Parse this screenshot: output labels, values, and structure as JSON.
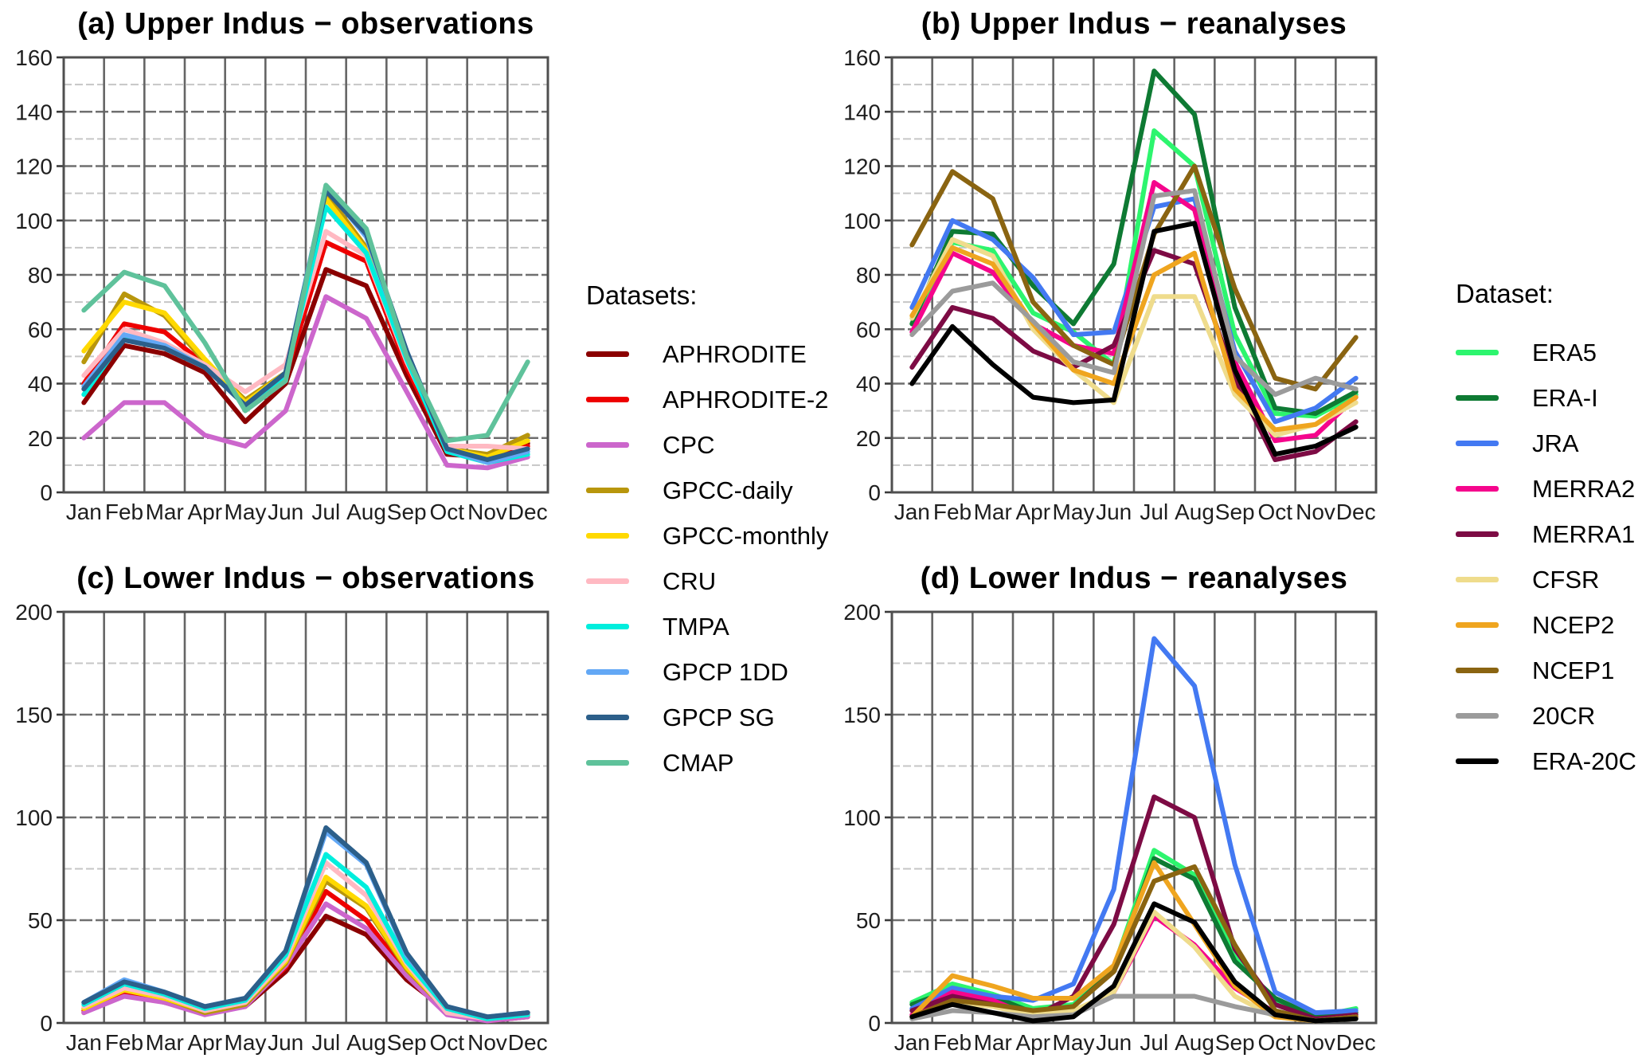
{
  "figure": {
    "background": "#ffffff"
  },
  "legends": [
    {
      "title": "Datasets:",
      "entries": [
        {
          "label": "APHRODITE",
          "color": "#8B0000"
        },
        {
          "label": "APHRODITE-2",
          "color": "#EE0000"
        },
        {
          "label": "CPC",
          "color": "#CC66CC"
        },
        {
          "label": "GPCC-daily",
          "color": "#B8960C"
        },
        {
          "label": "GPCC-monthly",
          "color": "#FFD900"
        },
        {
          "label": "CRU",
          "color": "#FFB9C2"
        },
        {
          "label": "TMPA",
          "color": "#00EEDD"
        },
        {
          "label": "GPCP 1DD",
          "color": "#63A8F5"
        },
        {
          "label": "GPCP SG",
          "color": "#2C5F8A"
        },
        {
          "label": "CMAP",
          "color": "#5FC29B"
        }
      ]
    },
    {
      "title": "Dataset:",
      "entries": [
        {
          "label": "ERA5",
          "color": "#2DF56E"
        },
        {
          "label": "ERA-I",
          "color": "#0E7A33"
        },
        {
          "label": "JRA",
          "color": "#4379F2"
        },
        {
          "label": "MERRA2",
          "color": "#F5058C"
        },
        {
          "label": "MERRA1",
          "color": "#7D0B44"
        },
        {
          "label": "CFSR",
          "color": "#EFDC8C"
        },
        {
          "label": "NCEP2",
          "color": "#EFA51F"
        },
        {
          "label": "NCEP1",
          "color": "#8A6411"
        },
        {
          "label": "20CR",
          "color": "#9B9B9B"
        },
        {
          "label": "ERA-20C",
          "color": "#000000"
        }
      ]
    }
  ],
  "chart_data": [
    {
      "type": "line",
      "panel": "a",
      "title": "(a) Upper Indus − observations",
      "xlabel": "",
      "ylabel": "",
      "categories": [
        "Jan",
        "Feb",
        "Mar",
        "Apr",
        "May",
        "Jun",
        "Jul",
        "Aug",
        "Sep",
        "Oct",
        "Nov",
        "Dec"
      ],
      "ylim": [
        0,
        160
      ],
      "ytick_major": 20,
      "ytick_minor": 10,
      "grid": "horizontal major+minor dashed, vertical month boundaries",
      "legend": 0,
      "series": [
        {
          "name": "APHRODITE",
          "values": [
            33,
            54,
            51,
            44,
            26,
            40,
            82,
            76,
            43,
            14,
            13,
            18
          ]
        },
        {
          "name": "APHRODITE-2",
          "values": [
            40,
            62,
            59,
            47,
            32,
            43,
            92,
            85,
            46,
            16,
            13,
            17
          ]
        },
        {
          "name": "CPC",
          "values": [
            20,
            33,
            33,
            21,
            17,
            30,
            72,
            64,
            37,
            10,
            9,
            13
          ]
        },
        {
          "name": "GPCC-daily",
          "values": [
            48,
            73,
            65,
            48,
            34,
            44,
            110,
            90,
            51,
            16,
            14,
            21
          ]
        },
        {
          "name": "GPCC-monthly",
          "values": [
            52,
            70,
            66,
            49,
            33,
            44,
            108,
            89,
            50,
            16,
            13,
            19
          ]
        },
        {
          "name": "CRU",
          "values": [
            43,
            60,
            55,
            47,
            37,
            47,
            96,
            87,
            48,
            17,
            17,
            16
          ]
        },
        {
          "name": "TMPA",
          "values": [
            36,
            57,
            54,
            46,
            32,
            43,
            105,
            88,
            49,
            15,
            11,
            14
          ]
        },
        {
          "name": "GPCP 1DD",
          "values": [
            39,
            58,
            54,
            46,
            32,
            44,
            112,
            94,
            52,
            16,
            11,
            15
          ]
        },
        {
          "name": "GPCP SG",
          "values": [
            38,
            56,
            53,
            46,
            32,
            44,
            111,
            95,
            52,
            16,
            12,
            16
          ]
        },
        {
          "name": "CMAP",
          "values": [
            67,
            81,
            76,
            55,
            30,
            41,
            113,
            97,
            50,
            19,
            21,
            48
          ]
        }
      ]
    },
    {
      "type": "line",
      "panel": "b",
      "title": "(b) Upper Indus − reanalyses",
      "xlabel": "",
      "ylabel": "",
      "categories": [
        "Jan",
        "Feb",
        "Mar",
        "Apr",
        "May",
        "Jun",
        "Jul",
        "Aug",
        "Sep",
        "Oct",
        "Nov",
        "Dec"
      ],
      "ylim": [
        0,
        160
      ],
      "ytick_major": 20,
      "ytick_minor": 10,
      "grid": "horizontal major+minor dashed, vertical month boundaries",
      "legend": 1,
      "series": [
        {
          "name": "ERA5",
          "values": [
            62,
            92,
            89,
            66,
            59,
            47,
            133,
            120,
            58,
            29,
            28,
            36
          ]
        },
        {
          "name": "ERA-I",
          "values": [
            62,
            96,
            95,
            76,
            62,
            84,
            155,
            139,
            68,
            31,
            29,
            37
          ]
        },
        {
          "name": "JRA",
          "values": [
            68,
            100,
            93,
            79,
            58,
            59,
            105,
            108,
            52,
            26,
            31,
            42
          ]
        },
        {
          "name": "MERRA2",
          "values": [
            59,
            88,
            81,
            62,
            54,
            51,
            114,
            104,
            48,
            19,
            21,
            35
          ]
        },
        {
          "name": "MERRA1",
          "values": [
            46,
            68,
            64,
            52,
            46,
            54,
            89,
            84,
            42,
            12,
            15,
            26
          ]
        },
        {
          "name": "CFSR",
          "values": [
            64,
            93,
            87,
            60,
            45,
            33,
            72,
            72,
            36,
            21,
            25,
            33
          ]
        },
        {
          "name": "NCEP2",
          "values": [
            65,
            90,
            84,
            62,
            45,
            40,
            80,
            88,
            38,
            23,
            25,
            35
          ]
        },
        {
          "name": "NCEP1",
          "values": [
            91,
            118,
            108,
            70,
            54,
            47,
            95,
            120,
            75,
            42,
            38,
            57
          ]
        },
        {
          "name": "20CR",
          "values": [
            58,
            74,
            77,
            63,
            48,
            44,
            109,
            111,
            50,
            36,
            42,
            38
          ]
        },
        {
          "name": "ERA-20C",
          "values": [
            40,
            61,
            47,
            35,
            33,
            34,
            96,
            99,
            45,
            14,
            17,
            24
          ]
        }
      ]
    },
    {
      "type": "line",
      "panel": "c",
      "title": "(c) Lower Indus − observations",
      "xlabel": "",
      "ylabel": "",
      "categories": [
        "Jan",
        "Feb",
        "Mar",
        "Apr",
        "May",
        "Jun",
        "Jul",
        "Aug",
        "Sep",
        "Oct",
        "Nov",
        "Dec"
      ],
      "ylim": [
        0,
        200
      ],
      "ytick_major": 50,
      "ytick_minor": 25,
      "grid": "horizontal major+minor dashed, vertical month boundaries",
      "legend": 0,
      "series": [
        {
          "name": "APHRODITE",
          "values": [
            5,
            15,
            10,
            5,
            8,
            25,
            52,
            43,
            21,
            6,
            2,
            5
          ]
        },
        {
          "name": "APHRODITE-2",
          "values": [
            6,
            15,
            11,
            5,
            9,
            27,
            64,
            50,
            24,
            6,
            1,
            3
          ]
        },
        {
          "name": "CPC",
          "values": [
            5,
            13,
            10,
            4,
            8,
            28,
            58,
            46,
            23,
            4,
            1,
            3
          ]
        },
        {
          "name": "GPCC-daily",
          "values": [
            7,
            16,
            12,
            5,
            9,
            29,
            69,
            56,
            26,
            6,
            2,
            4
          ]
        },
        {
          "name": "GPCC-monthly",
          "values": [
            7,
            16,
            12,
            6,
            10,
            30,
            71,
            57,
            27,
            6,
            2,
            4
          ]
        },
        {
          "name": "CRU",
          "values": [
            8,
            17,
            13,
            6,
            10,
            31,
            78,
            62,
            29,
            5,
            2,
            4
          ]
        },
        {
          "name": "TMPA",
          "values": [
            9,
            19,
            14,
            7,
            11,
            33,
            82,
            66,
            30,
            7,
            2,
            4
          ]
        },
        {
          "name": "GPCP 1DD",
          "values": [
            10,
            21,
            15,
            8,
            12,
            35,
            93,
            77,
            33,
            8,
            3,
            5
          ]
        },
        {
          "name": "GPCP SG",
          "values": [
            10,
            20,
            15,
            8,
            12,
            35,
            95,
            78,
            34,
            8,
            3,
            5
          ]
        }
      ]
    },
    {
      "type": "line",
      "panel": "d",
      "title": "(d) Lower Indus − reanalyses",
      "xlabel": "",
      "ylabel": "",
      "categories": [
        "Jan",
        "Feb",
        "Mar",
        "Apr",
        "May",
        "Jun",
        "Jul",
        "Aug",
        "Sep",
        "Oct",
        "Nov",
        "Dec"
      ],
      "ylim": [
        0,
        200
      ],
      "ytick_major": 50,
      "ytick_minor": 25,
      "grid": "horizontal major+minor dashed, vertical month boundaries",
      "legend": 1,
      "series": [
        {
          "name": "ERA5",
          "values": [
            10,
            19,
            14,
            7,
            9,
            27,
            84,
            72,
            33,
            10,
            3,
            7
          ]
        },
        {
          "name": "ERA-I",
          "values": [
            9,
            16,
            13,
            5,
            8,
            26,
            80,
            70,
            30,
            12,
            3,
            5
          ]
        },
        {
          "name": "JRA",
          "values": [
            7,
            17,
            13,
            11,
            19,
            65,
            187,
            164,
            77,
            15,
            5,
            6
          ]
        },
        {
          "name": "MERRA2",
          "values": [
            4,
            15,
            11,
            3,
            4,
            15,
            52,
            38,
            17,
            5,
            1,
            3
          ]
        },
        {
          "name": "MERRA1",
          "values": [
            6,
            13,
            9,
            3,
            13,
            48,
            110,
            100,
            36,
            9,
            2,
            4
          ]
        },
        {
          "name": "CFSR",
          "values": [
            3,
            10,
            8,
            4,
            6,
            15,
            54,
            37,
            13,
            3,
            1,
            2
          ]
        },
        {
          "name": "NCEP2",
          "values": [
            3,
            23,
            18,
            12,
            12,
            28,
            78,
            48,
            18,
            3,
            1,
            3
          ]
        },
        {
          "name": "NCEP1",
          "values": [
            3,
            11,
            9,
            6,
            8,
            25,
            69,
            76,
            38,
            6,
            1,
            3
          ]
        },
        {
          "name": "20CR",
          "values": [
            2,
            6,
            5,
            3,
            4,
            13,
            13,
            13,
            8,
            4,
            1,
            2
          ]
        },
        {
          "name": "ERA-20C",
          "values": [
            3,
            9,
            5,
            1,
            3,
            18,
            58,
            49,
            20,
            4,
            1,
            2
          ]
        }
      ]
    }
  ]
}
